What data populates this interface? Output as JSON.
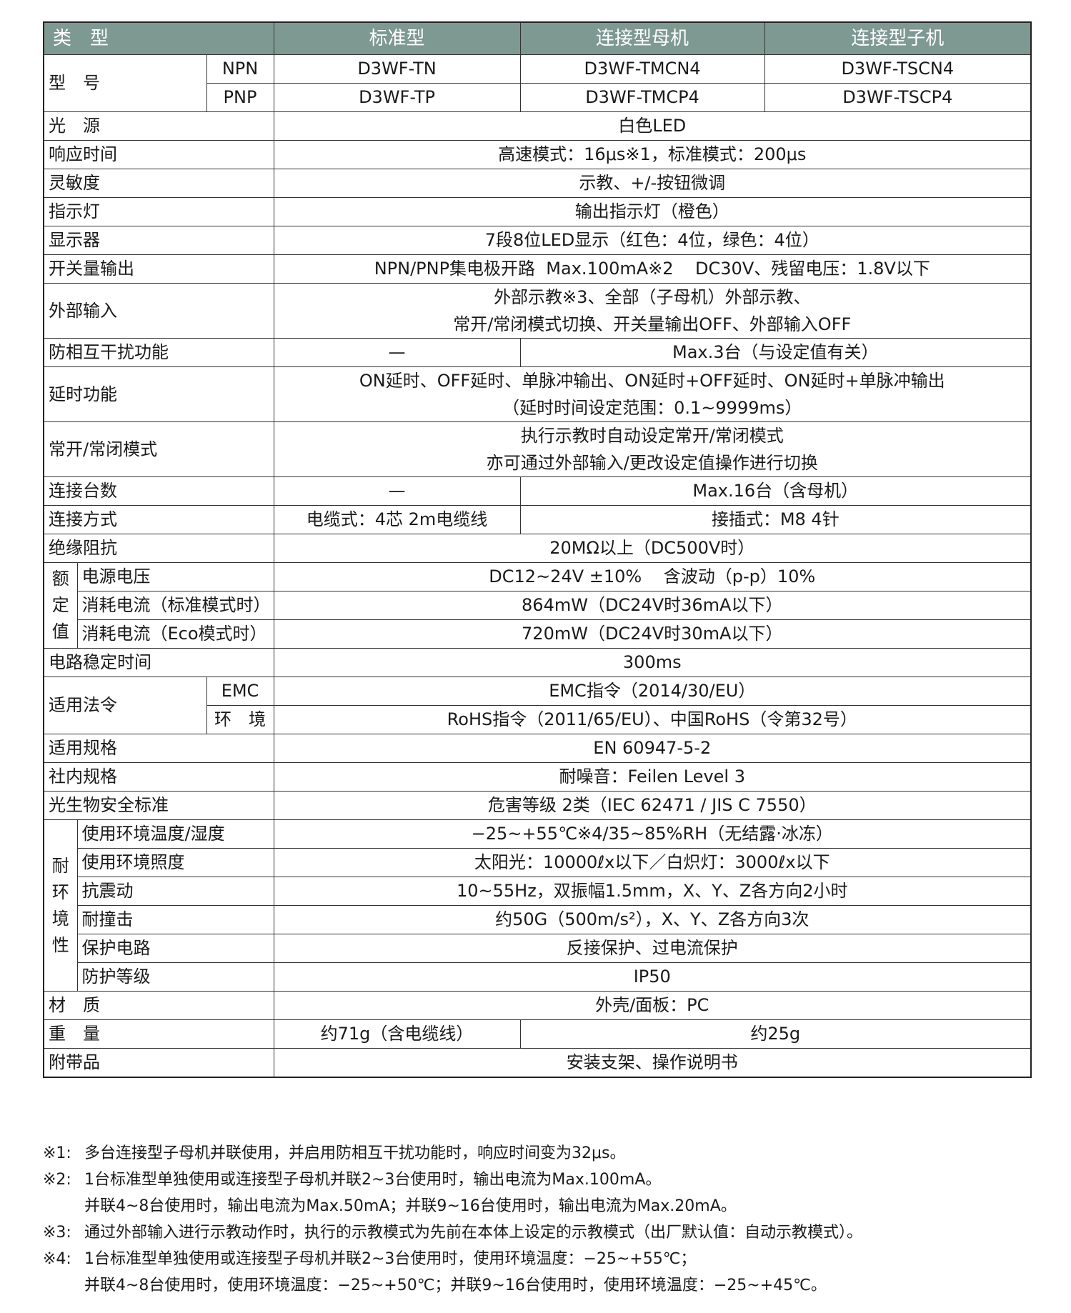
{
  "header": {
    "type": "类　型",
    "col_std": "标准型",
    "col_master": "连接型母机",
    "col_slave": "连接型子机"
  },
  "model": {
    "label": "型　号",
    "npn": {
      "label": "NPN",
      "std": "D3WF-TN",
      "master": "D3WF-TMCN4",
      "slave": "D3WF-TSCN4"
    },
    "pnp": {
      "label": "PNP",
      "std": "D3WF-TP",
      "master": "D3WF-TMCP4",
      "slave": "D3WF-TSCP4"
    }
  },
  "rows": {
    "light_source": {
      "label": "光　源",
      "value": "白色LED"
    },
    "response": {
      "label": "响应时间",
      "value": "高速模式：16μs※1，标准模式：200μs"
    },
    "sensitivity": {
      "label": "灵敏度",
      "value": "示教、+/-按钮微调"
    },
    "indicator": {
      "label": "指示灯",
      "value": "输出指示灯（橙色）"
    },
    "display": {
      "label": "显示器",
      "value": "7段8位LED显示（红色：4位，绿色：4位）"
    },
    "switch_output": {
      "label": "开关量输出",
      "value": "NPN/PNP集电极开路  Max.100mA※2    DC30V、残留电压：1.8V以下"
    },
    "external_input": {
      "label": "外部输入",
      "line1": "外部示教※3、全部（子母机）外部示教、",
      "line2": "常开/常闭模式切换、开关量输出OFF、外部输入OFF"
    },
    "interference": {
      "label": "防相互干扰功能",
      "std": "—",
      "linked": "Max.3台（与设定值有关）"
    },
    "delay": {
      "label": "延时功能",
      "line1": "ON延时、OFF延时、单脉冲输出、ON延时+OFF延时、ON延时+单脉冲输出",
      "line2": "（延时时间设定范围：0.1~9999ms）"
    },
    "no_nc": {
      "label": "常开/常闭模式",
      "line1": "执行示教时自动设定常开/常闭模式",
      "line2": "亦可通过外部输入/更改设定值操作进行切换"
    },
    "connections": {
      "label": "连接台数",
      "std": "—",
      "linked": "Max.16台（含母机）"
    },
    "connection_method": {
      "label": "连接方式",
      "std": "电缆式：4芯  2m电缆线",
      "linked": "接插式：M8 4针"
    },
    "insulation": {
      "label": "绝缘阻抗",
      "value": "20MΩ以上（DC500V时）"
    },
    "circuit_settle": {
      "label": "电路稳定时间",
      "value": "300ms"
    },
    "standards": {
      "label": "适用规格",
      "value": "EN 60947-5-2"
    },
    "internal_std": {
      "label": "社内规格",
      "value": "耐噪音：Feilen Level 3"
    },
    "photobio": {
      "label": "光生物安全标准",
      "value": "危害等级 2类（IEC 62471 / JIS C 7550）"
    },
    "material": {
      "label": "材　质",
      "value": "外壳/面板：PC"
    },
    "weight": {
      "label": "重　量",
      "std": "约71g（含电缆线）",
      "linked": "约25g"
    },
    "accessories": {
      "label": "附带品",
      "value": "安装支架、操作说明书"
    }
  },
  "rated": {
    "group": "额定值",
    "supply": {
      "label": "电源电压",
      "value": "DC12~24V ±10%    含波动（p-p）10%"
    },
    "current_std": {
      "label": "消耗电流（标准模式时）",
      "value": "864mW（DC24V时36mA以下）"
    },
    "current_eco": {
      "label": "消耗电流（Eco模式时）",
      "value": "720mW（DC24V时30mA以下）"
    }
  },
  "regulations": {
    "label": "适用法令",
    "emc": {
      "label": "EMC",
      "value": "EMC指令（2014/30/EU）"
    },
    "env": {
      "label": "环　境",
      "value": "RoHS指令（2011/65/EU）、中国RoHS（令第32号）"
    }
  },
  "env_resistance": {
    "group": "耐环境性",
    "temp": {
      "label": "使用环境温度/湿度",
      "value": "−25~+55℃※4/35~85%RH（无结露·冰冻）"
    },
    "illum": {
      "label": "使用环境照度",
      "value": "太阳光：10000ℓx以下／白炽灯：3000ℓx以下"
    },
    "vibration": {
      "label": "抗震动",
      "value": "10~55Hz，双振幅1.5mm，X、Y、Z各方向2小时"
    },
    "shock": {
      "label": "耐撞击",
      "value": "约50G（500m/s²），X、Y、Z各方向3次"
    },
    "protection_circuit": {
      "label": "保护电路",
      "value": "反接保护、过电流保护"
    },
    "ip": {
      "label": "防护等级",
      "value": "IP50"
    }
  },
  "footnotes": [
    {
      "mark": "※1:",
      "lines": [
        "多台连接型子母机并联使用，并启用防相互干扰功能时，响应时间变为32μs。"
      ]
    },
    {
      "mark": "※2:",
      "lines": [
        "1台标准型单独使用或连接型子母机并联2~3台使用时，输出电流为Max.100mA。",
        "并联4~8台使用时，输出电流为Max.50mA；并联9~16台使用时，输出电流为Max.20mA。"
      ]
    },
    {
      "mark": "※3:",
      "lines": [
        "通过外部输入进行示教动作时，执行的示教模式为先前在本体上设定的示教模式（出厂默认值：自动示教模式）。"
      ]
    },
    {
      "mark": "※4:",
      "lines": [
        "1台标准型单独使用或连接型子母机并联2~3台使用时，使用环境温度：−25~+55℃；",
        "并联4~8台使用时，使用环境温度：−25~+50℃；并联9~16台使用时，使用环境温度：−25~+45℃。"
      ]
    }
  ]
}
